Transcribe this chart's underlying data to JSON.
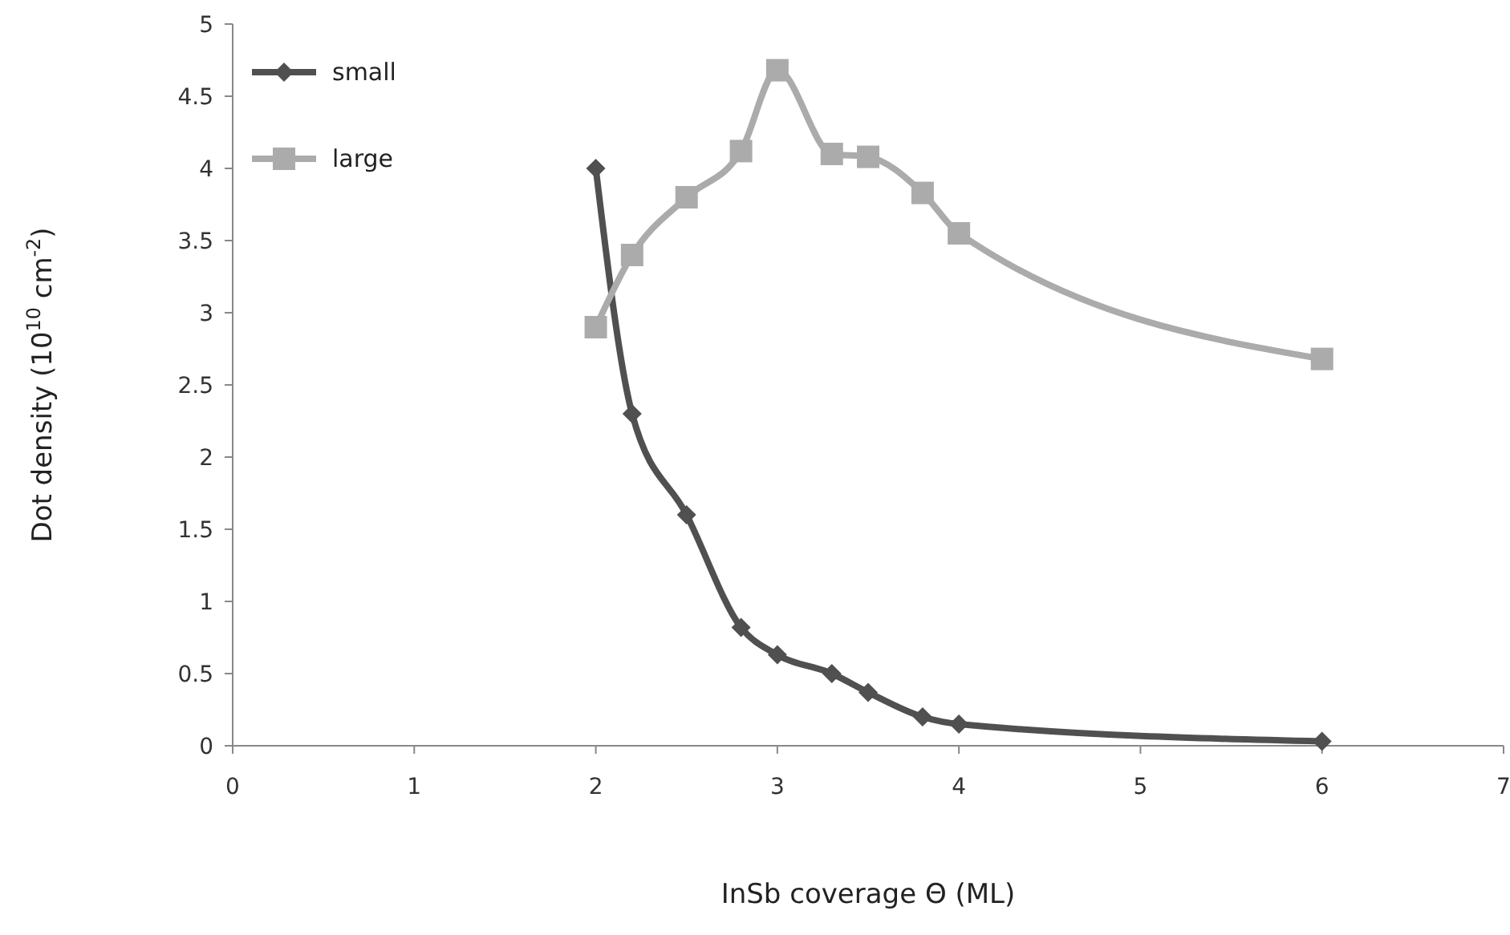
{
  "chart_data": {
    "type": "line",
    "xlabel": "InSb coverage Θ (ML)",
    "ylabel": "Dot density (10$^{10}$ cm$^{-2}$)",
    "x": [
      2,
      2.2,
      2.5,
      2.8,
      3,
      3.3,
      3.5,
      3.8,
      4,
      6
    ],
    "xlim": [
      0,
      7
    ],
    "xticks": [
      0,
      1,
      2,
      3,
      4,
      5,
      6,
      7
    ],
    "ylim": [
      0,
      5
    ],
    "yticks": [
      0,
      0.5,
      1,
      1.5,
      2,
      2.5,
      3,
      3.5,
      4,
      4.5,
      5
    ],
    "legend": "top left",
    "grid": false,
    "series": [
      {
        "name": "small",
        "color": "#505050",
        "marker": "diamond",
        "values": [
          4.0,
          2.3,
          1.6,
          0.82,
          0.63,
          0.5,
          0.37,
          0.2,
          0.15,
          0.03
        ]
      },
      {
        "name": "large",
        "color": "#ababab",
        "marker": "square",
        "values": [
          2.9,
          3.4,
          3.8,
          4.12,
          4.68,
          4.1,
          4.08,
          3.83,
          3.55,
          2.68
        ]
      }
    ]
  }
}
